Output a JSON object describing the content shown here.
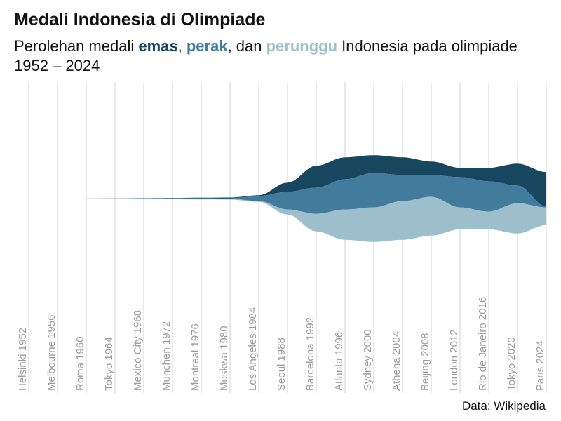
{
  "header": {
    "title": "Medali Indonesia di Olimpiade",
    "subtitle_prefix": "Perolehan medali ",
    "subtitle_gold": "emas",
    "subtitle_sep1": ", ",
    "subtitle_silver": "perak",
    "subtitle_sep2": ", dan ",
    "subtitle_bronze": "perunggu",
    "subtitle_suffix": " Indonesia pada olimpiade 1952 – 2024"
  },
  "caption": "Data: Wikipedia",
  "colors": {
    "gold": "#17465f",
    "silver": "#427b9b",
    "bronze": "#9dbfcb",
    "gridline": "#d0d0d0",
    "tick_text": "#9a9a9a"
  },
  "chart_data": {
    "type": "area",
    "stacking": "streamgraph",
    "x": [
      "Helsinki 1952",
      "Melbourne 1956",
      "Roma 1960",
      "Tokyo 1964",
      "Mexico City 1968",
      "München 1972",
      "Montreal 1976",
      "Moskwa 1980",
      "Los Angeles 1984",
      "Seoul 1988",
      "Barcelona 1992",
      "Atlanta 1996",
      "Sydney 2000",
      "Athena 2004",
      "Beijing 2008",
      "London 2012",
      "Rio de Janeiro 2016",
      "Tokyo 2020",
      "Paris 2024"
    ],
    "series": [
      {
        "name": "emas",
        "color": "#17465f",
        "values": [
          0,
          0,
          0,
          0,
          0,
          0,
          0,
          0,
          0,
          0,
          2,
          1,
          1,
          1,
          1,
          0,
          1,
          1,
          2
        ]
      },
      {
        "name": "perak",
        "color": "#427b9b",
        "values": [
          0,
          0,
          0,
          0,
          0,
          0,
          0,
          0,
          0,
          1,
          2,
          1,
          3,
          1,
          1,
          2,
          2,
          1,
          0
        ]
      },
      {
        "name": "perunggu",
        "color": "#9dbfcb",
        "values": [
          0,
          0,
          0,
          0,
          0,
          0,
          0,
          0,
          0,
          0,
          1,
          2,
          2,
          2,
          3,
          1,
          0,
          3,
          1
        ]
      }
    ],
    "grid": true,
    "legend": "inline in subtitle",
    "xlabel": "",
    "ylabel": ""
  }
}
